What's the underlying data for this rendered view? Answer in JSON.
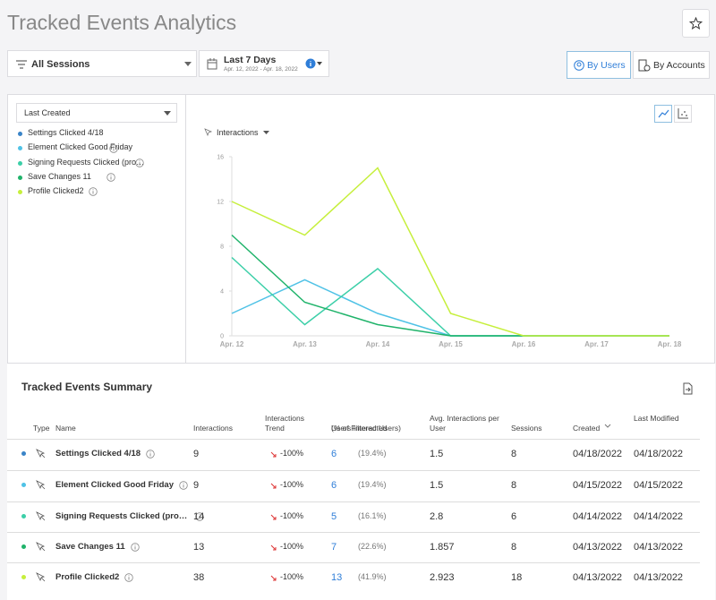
{
  "header": {
    "title": "Tracked Events Analytics"
  },
  "filters": {
    "sessions": "All Sessions",
    "date_label": "Last 7 Days",
    "date_range": "Apr. 12, 2022 - Apr. 18, 2022",
    "views": [
      "By Users",
      "By Accounts"
    ]
  },
  "sidebar": {
    "sort": "Last Created"
  },
  "chart_data": {
    "type": "line",
    "y_label": "Interactions",
    "categories": [
      "Apr. 12",
      "Apr. 13",
      "Apr. 14",
      "Apr. 15",
      "Apr. 16",
      "Apr. 17",
      "Apr. 18"
    ],
    "ylim": [
      0,
      16
    ],
    "yticks": [
      0,
      4,
      8,
      12,
      16
    ],
    "series": [
      {
        "name": "Settings Clicked 4/18",
        "color": "#3a84c8",
        "values": [
          null,
          null,
          null,
          null,
          null,
          null,
          null
        ]
      },
      {
        "name": "Element Clicked Good Friday",
        "color": "#4fc2e6",
        "values": [
          2,
          5,
          2,
          0,
          0,
          0,
          0
        ]
      },
      {
        "name": "Signing Requests Clicked (productlab)",
        "color": "#3ccfa8",
        "values": [
          7,
          1,
          6,
          0,
          0,
          0,
          0
        ]
      },
      {
        "name": "Save Changes 11",
        "color": "#1fb36a",
        "values": [
          9,
          3,
          1,
          0,
          0,
          0,
          0
        ]
      },
      {
        "name": "Profile Clicked2",
        "color": "#c6ef3c",
        "values": [
          12,
          9,
          15,
          2,
          0,
          0,
          0
        ]
      }
    ]
  },
  "summary": {
    "title": "Tracked Events Summary",
    "columns": [
      "Type",
      "Name",
      "Interactions",
      "Interactions Trend",
      "Users Interacted",
      "Avg. Interactions per User",
      "Sessions",
      "Created",
      "Last Modified"
    ],
    "users_sub": "(% of Filtered Users)",
    "rows": [
      [
        "Settings Clicked 4/18",
        9,
        "-100%",
        6,
        "(19.4%)",
        1.5,
        8,
        "04/18/2022",
        "04/18/2022"
      ],
      [
        "Element Clicked Good Friday",
        9,
        "-100%",
        6,
        "(19.4%)",
        1.5,
        8,
        "04/15/2022",
        "04/15/2022"
      ],
      [
        "Signing Requests Clicked (productlab)",
        14,
        "-100%",
        5,
        "(16.1%)",
        2.8,
        6,
        "04/14/2022",
        "04/14/2022"
      ],
      [
        "Save Changes 11",
        13,
        "-100%",
        7,
        "(22.6%)",
        1.857,
        8,
        "04/13/2022",
        "04/13/2022"
      ],
      [
        "Profile Clicked2",
        38,
        "-100%",
        13,
        "(41.9%)",
        2.923,
        18,
        "04/13/2022",
        "04/13/2022"
      ]
    ]
  }
}
